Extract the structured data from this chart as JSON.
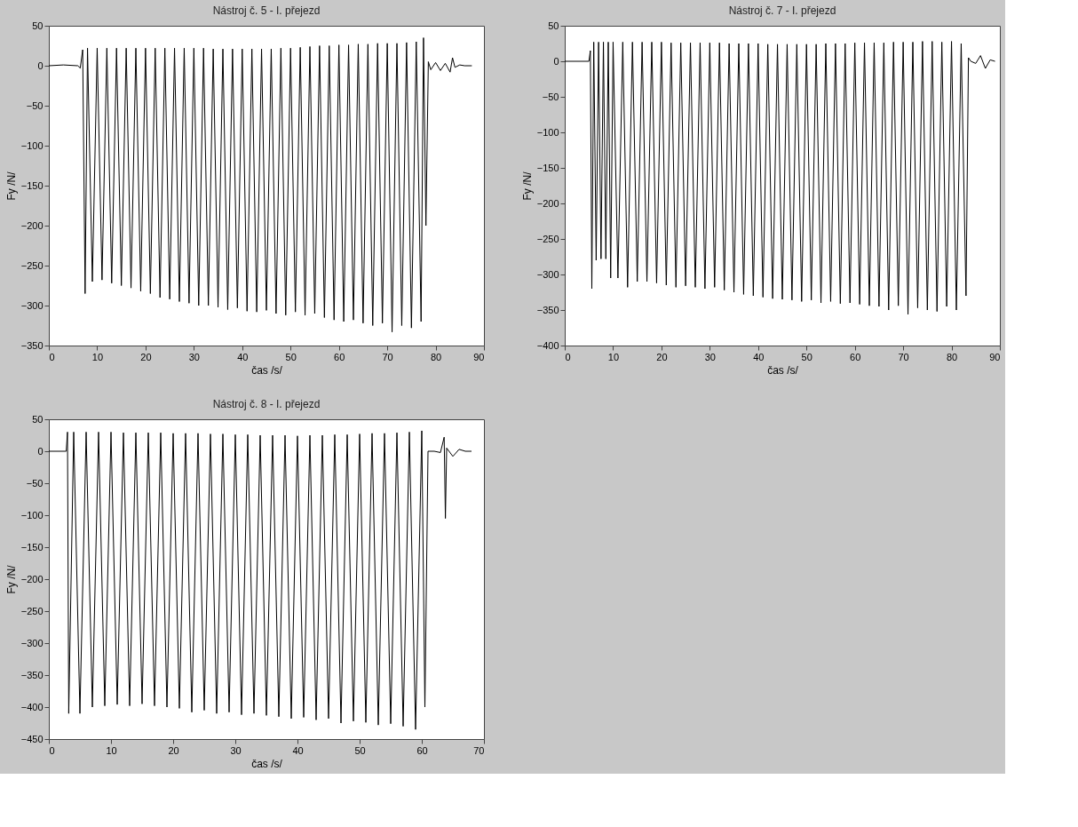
{
  "chart_data": [
    {
      "type": "line",
      "title": "Nástroj č. 5 - I. přejezd",
      "xlabel": "čas /s/",
      "ylabel": "Fy /N/",
      "xlim": [
        0,
        90
      ],
      "ylim": [
        -350,
        50
      ],
      "xticks": [
        0,
        10,
        20,
        30,
        40,
        50,
        60,
        70,
        80,
        90
      ],
      "yticks": [
        -350,
        -300,
        -250,
        -200,
        -150,
        -100,
        -50,
        0,
        50
      ],
      "grid": false,
      "marker": "none",
      "line_style": "solid",
      "series": [
        {
          "color": "#000000",
          "x": [
            0,
            3,
            6,
            6.5,
            7,
            7.5,
            8,
            9,
            10,
            11,
            12,
            13,
            14,
            15,
            16,
            17,
            18,
            19,
            20,
            21,
            22,
            23,
            24,
            25,
            26,
            27,
            28,
            29,
            30,
            31,
            32,
            33,
            34,
            35,
            36,
            37,
            38,
            39,
            40,
            41,
            42,
            43,
            44,
            45,
            46,
            47,
            48,
            49,
            50,
            51,
            52,
            53,
            54,
            55,
            56,
            57,
            58,
            59,
            60,
            61,
            62,
            63,
            64,
            65,
            66,
            67,
            68,
            69,
            70,
            71,
            72,
            73,
            74,
            75,
            76,
            77,
            77.5,
            78,
            78.5,
            79,
            80,
            81,
            82,
            83,
            83.5,
            84,
            85,
            86,
            87.5
          ],
          "values": [
            0,
            1,
            0,
            -3,
            20,
            -285,
            22,
            -270,
            22,
            -268,
            22,
            -272,
            22,
            -275,
            22,
            -278,
            22,
            -282,
            22,
            -285,
            22,
            -290,
            22,
            -292,
            22,
            -295,
            22,
            -297,
            22,
            -300,
            22,
            -300,
            21,
            -302,
            21,
            -305,
            21,
            -303,
            21,
            -307,
            21,
            -308,
            21,
            -306,
            21,
            -310,
            22,
            -312,
            22,
            -308,
            23,
            -312,
            24,
            -310,
            25,
            -315,
            25,
            -318,
            26,
            -320,
            26,
            -318,
            27,
            -322,
            27,
            -325,
            28,
            -322,
            28,
            -333,
            28,
            -325,
            29,
            -328,
            30,
            -320,
            35,
            -200,
            5,
            -5,
            4,
            -6,
            3,
            -8,
            10,
            -2,
            1,
            0,
            0
          ]
        }
      ]
    },
    {
      "type": "line",
      "title": "Nástroj č. 7 - I. přejezd",
      "xlabel": "čas /s/",
      "ylabel": "Fy /N/",
      "xlim": [
        0,
        90
      ],
      "ylim": [
        -400,
        50
      ],
      "xticks": [
        0,
        10,
        20,
        30,
        40,
        50,
        60,
        70,
        80,
        90
      ],
      "yticks": [
        -400,
        -350,
        -300,
        -250,
        -200,
        -150,
        -100,
        -50,
        0,
        50
      ],
      "grid": false,
      "marker": "none",
      "line_style": "solid",
      "series": [
        {
          "color": "#000000",
          "x": [
            0,
            5,
            5.3,
            5.6,
            6,
            6.5,
            7,
            7.5,
            8,
            8.5,
            9,
            9.5,
            10,
            11,
            12,
            13,
            14,
            15,
            16,
            17,
            18,
            19,
            20,
            21,
            22,
            23,
            24,
            25,
            26,
            27,
            28,
            29,
            30,
            31,
            32,
            33,
            34,
            35,
            36,
            37,
            38,
            39,
            40,
            41,
            42,
            43,
            44,
            45,
            46,
            47,
            48,
            49,
            50,
            51,
            52,
            53,
            54,
            55,
            56,
            57,
            58,
            59,
            60,
            61,
            62,
            63,
            64,
            65,
            66,
            67,
            68,
            69,
            70,
            71,
            72,
            73,
            74,
            75,
            76,
            77,
            78,
            79,
            80,
            81,
            82,
            83,
            83.5,
            84,
            85,
            86,
            87,
            88,
            89
          ],
          "values": [
            0,
            0,
            15,
            -320,
            27,
            -280,
            27,
            -278,
            27,
            -278,
            27,
            -305,
            27,
            -305,
            27,
            -318,
            27,
            -310,
            27,
            -310,
            27,
            -312,
            27,
            -315,
            26,
            -318,
            26,
            -316,
            26,
            -318,
            26,
            -320,
            26,
            -318,
            26,
            -322,
            25,
            -325,
            25,
            -328,
            25,
            -330,
            25,
            -332,
            24,
            -334,
            24,
            -335,
            24,
            -336,
            24,
            -338,
            24,
            -336,
            24,
            -340,
            25,
            -338,
            25,
            -341,
            25,
            -340,
            26,
            -342,
            26,
            -344,
            26,
            -345,
            26,
            -350,
            27,
            -344,
            27,
            -356,
            27,
            -347,
            28,
            -350,
            28,
            -352,
            27,
            -345,
            28,
            -350,
            25,
            -330,
            5,
            0,
            -3,
            8,
            -10,
            2,
            0
          ]
        }
      ]
    },
    {
      "type": "line",
      "title": "Nástroj č. 8 - I. přejezd",
      "xlabel": "čas /s/",
      "ylabel": "Fy /N/",
      "xlim": [
        0,
        70
      ],
      "ylim": [
        -450,
        50
      ],
      "xticks": [
        0,
        10,
        20,
        30,
        40,
        50,
        60,
        70
      ],
      "yticks": [
        -450,
        -400,
        -350,
        -300,
        -250,
        -200,
        -150,
        -100,
        -50,
        0,
        50
      ],
      "grid": false,
      "marker": "none",
      "line_style": "solid",
      "series": [
        {
          "color": "#000000",
          "x": [
            0,
            2.8,
            3,
            3.2,
            4,
            5,
            6,
            7,
            8,
            9,
            10,
            11,
            12,
            13,
            14,
            15,
            16,
            17,
            18,
            19,
            20,
            21,
            22,
            23,
            24,
            25,
            26,
            27,
            28,
            29,
            30,
            31,
            32,
            33,
            34,
            35,
            36,
            37,
            38,
            39,
            40,
            41,
            42,
            43,
            44,
            45,
            46,
            47,
            48,
            49,
            50,
            51,
            52,
            53,
            54,
            55,
            56,
            57,
            58,
            59,
            60,
            60.5,
            61,
            62,
            63,
            63.6,
            63.8,
            64,
            65,
            66,
            67,
            68
          ],
          "values": [
            0,
            0,
            30,
            -410,
            30,
            -410,
            30,
            -400,
            30,
            -398,
            30,
            -396,
            29,
            -398,
            29,
            -395,
            29,
            -398,
            29,
            -400,
            28,
            -402,
            28,
            -408,
            28,
            -405,
            27,
            -410,
            27,
            -408,
            26,
            -412,
            26,
            -410,
            25,
            -413,
            25,
            -415,
            25,
            -418,
            24,
            -416,
            25,
            -420,
            25,
            -418,
            26,
            -425,
            26,
            -422,
            27,
            -424,
            28,
            -428,
            28,
            -426,
            29,
            -430,
            30,
            -435,
            32,
            -400,
            0,
            0,
            -2,
            22,
            -105,
            5,
            -8,
            3,
            0,
            0
          ]
        }
      ]
    }
  ]
}
